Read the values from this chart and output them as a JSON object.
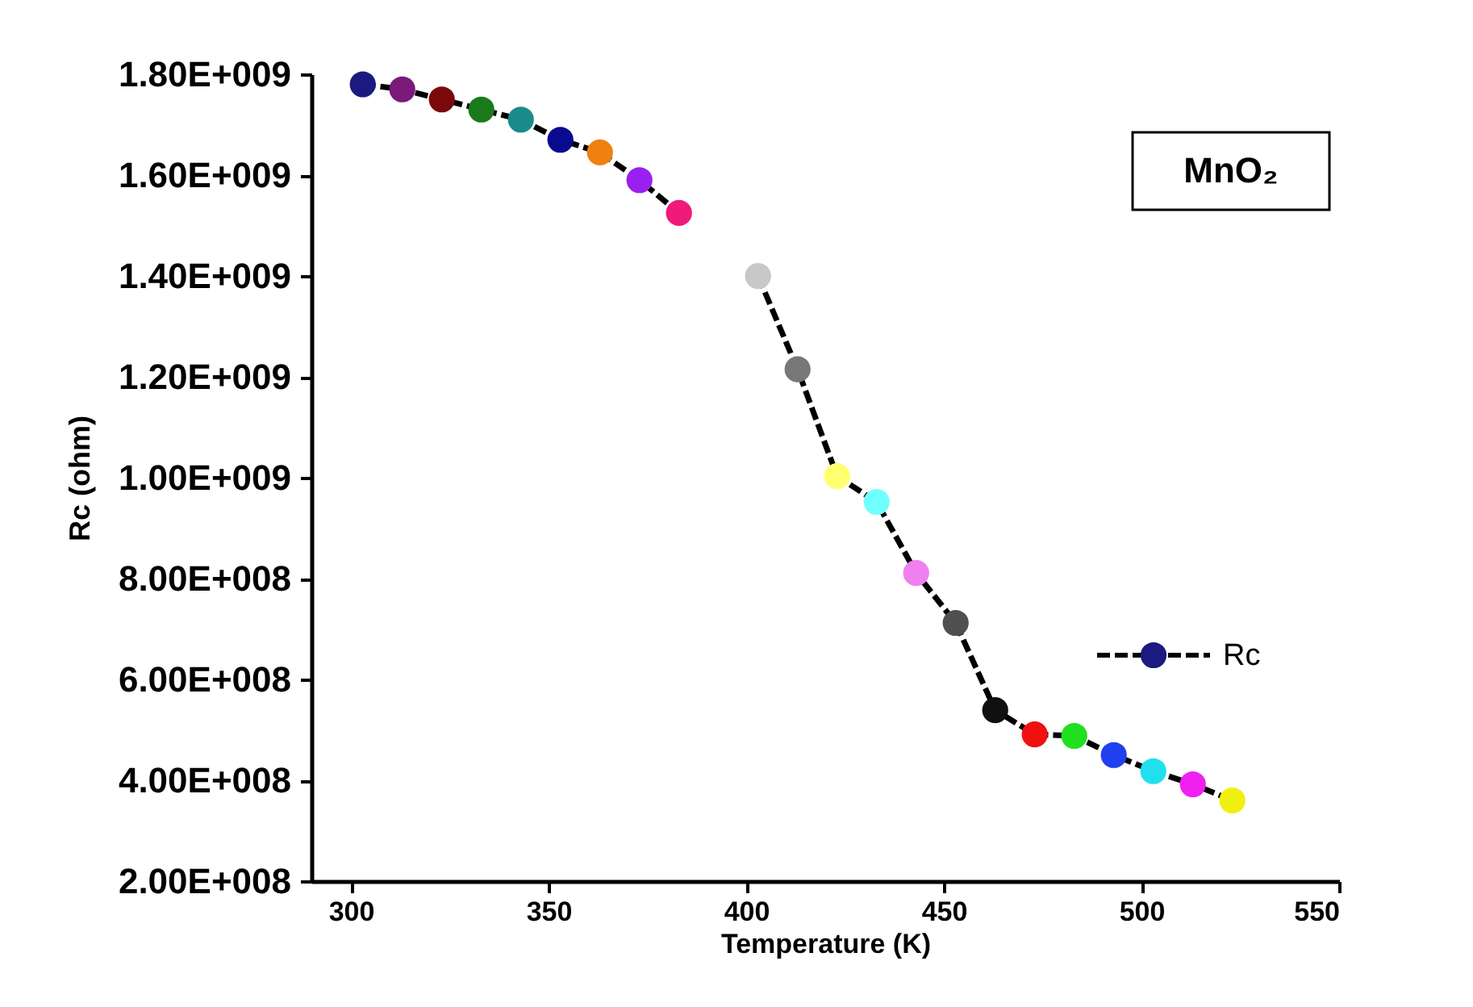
{
  "chart_data": {
    "type": "line",
    "xlabel": "Temperature (K)",
    "ylabel": "Rc (ohm)",
    "annotations": [
      "MnO₂"
    ],
    "x": [
      303,
      313,
      323,
      333,
      343,
      353,
      363,
      373,
      383,
      393,
      403,
      413,
      423,
      433,
      443,
      453,
      463,
      473,
      483,
      493,
      503,
      513,
      523
    ],
    "series": [
      {
        "name": "Rc",
        "color": "#000000",
        "values": [
          1780000000,
          1770000000,
          1750000000,
          1730000000,
          1710000000,
          1670000000,
          1645000000,
          1590000000,
          1525000000,
          null,
          1400000000,
          1215000000,
          1003000000,
          952000000,
          811000000,
          712000000,
          539000000,
          491000000,
          488000000,
          450000000,
          418000000,
          392000000,
          360000000
        ],
        "colors": [
          "#1a1a80",
          "#7a1a7a",
          "#7a0a0a",
          "#1a7a1a",
          "#1a8a8a",
          "#0a0a90",
          "#f08010",
          "#9a20f0",
          "#f01a7a",
          "#ffffff",
          "#c8c8c8",
          "#787878",
          "#ffff70",
          "#70ffff",
          "#f080f0",
          "#505050",
          "#101010",
          "#f01010",
          "#20e020",
          "#2040f0",
          "#20e0f0",
          "#f020f0",
          "#f0f010"
        ]
      }
    ],
    "xlim": [
      290,
      550
    ],
    "xticks": [
      300,
      350,
      400,
      450,
      500,
      550
    ],
    "ylim": [
      200000000,
      1800000000
    ],
    "yticks": [
      {
        "value": 200000000,
        "label": "2.00E+008"
      },
      {
        "value": 400000000,
        "label": "4.00E+008"
      },
      {
        "value": 600000000,
        "label": "6.00E+008"
      },
      {
        "value": 800000000,
        "label": "8.00E+008"
      },
      {
        "value": 1000000000,
        "label": "1.00E+009"
      },
      {
        "value": 1200000000,
        "label": "1.20E+009"
      },
      {
        "value": 1400000000,
        "label": "1.40E+009"
      },
      {
        "value": 1600000000,
        "label": "1.60E+009"
      },
      {
        "value": 1800000000,
        "label": "1.80E+009"
      }
    ],
    "marker": "circle",
    "line_style": "dashed",
    "legend": "right",
    "grid": false
  }
}
